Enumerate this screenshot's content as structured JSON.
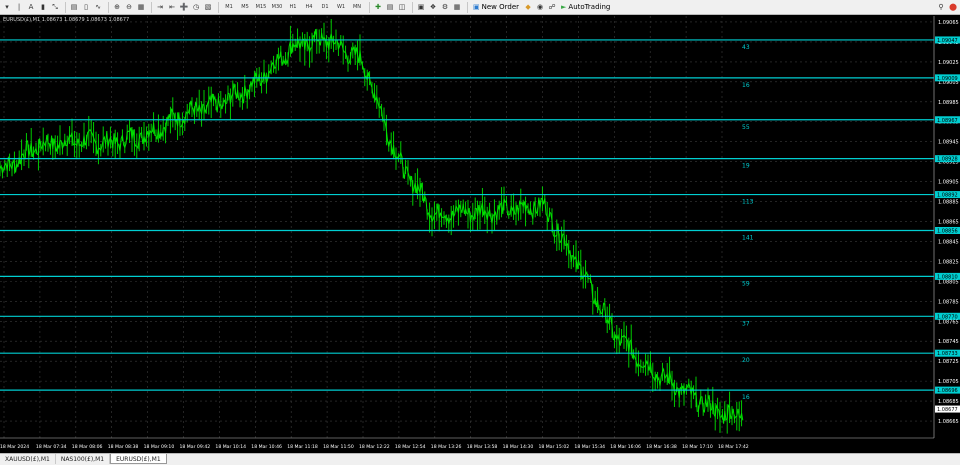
{
  "toolbar": {
    "timeframes": [
      "M1",
      "M5",
      "M15",
      "M30",
      "H1",
      "H4",
      "D1",
      "W1",
      "MN"
    ],
    "new_order_label": "New Order",
    "autotrading_label": "AutoTrading",
    "accent_autotrading": "#3aa845",
    "close_color": "#d93a2a"
  },
  "chart": {
    "symbol_label": "EURUSD(£),M1  1.08673 1.08679 1.08673 1.08677",
    "background": "#000000",
    "grid_color": "#3b3b3b",
    "candle_color": "#00e000",
    "level_color": "#00ced1",
    "price_axis_text_color": "#ffffff"
  },
  "chart_data": {
    "type": "line",
    "title": "",
    "xlabel": "",
    "ylabel": "",
    "x": [
      "18 Mar 2024",
      "18 Mar 07:34",
      "18 Mar 08:06",
      "18 Mar 08:38",
      "18 Mar 09:10",
      "18 Mar 09:42",
      "18 Mar 10:14",
      "18 Mar 10:46",
      "18 Mar 11:18",
      "18 Mar 11:50",
      "18 Mar 12:22",
      "18 Mar 12:54",
      "18 Mar 13:26",
      "18 Mar 13:58",
      "18 Mar 14:30",
      "18 Mar 15:02",
      "18 Mar 15:34",
      "18 Mar 16:06",
      "18 Mar 16:38",
      "18 Mar 17:10",
      "18 Mar 17:42"
    ],
    "x_at_ticks": [
      1.08918,
      1.08942,
      1.08946,
      1.08944,
      1.08953,
      1.08973,
      1.08982,
      1.09003,
      1.0904,
      1.09048,
      1.09025,
      1.08925,
      1.08872,
      1.08875,
      1.08876,
      1.08882,
      1.08822,
      1.08752,
      1.08718,
      1.08693,
      1.08672
    ],
    "ylim": [
      1.08648,
      1.09071
    ],
    "y_ticks": [
      "1.09065",
      "1.09045",
      "1.09025",
      "1.09005",
      "1.08985",
      "1.08965",
      "1.08945",
      "1.08925",
      "1.08905",
      "1.08885",
      "1.08865",
      "1.08845",
      "1.08825",
      "1.08805",
      "1.08785",
      "1.08765",
      "1.08745",
      "1.08725",
      "1.08705",
      "1.08685",
      "1.08665"
    ],
    "levels": [
      {
        "price": "1.09047",
        "label": "43"
      },
      {
        "price": "1.09009",
        "label": "16"
      },
      {
        "price": "1.08967",
        "label": "55"
      },
      {
        "price": "1.08928",
        "label": "19"
      },
      {
        "price": "1.08892",
        "label": "113"
      },
      {
        "price": "1.08856",
        "label": "141"
      },
      {
        "price": "1.08810",
        "label": "59"
      },
      {
        "price": "1.08770",
        "label": "37"
      },
      {
        "price": "1.08733",
        "label": "20"
      },
      {
        "price": "1.08696",
        "label": "16"
      }
    ],
    "current_price": "1.08677",
    "grid": true
  },
  "tabs": [
    {
      "label": "XAUUSD(£),M1",
      "active": false
    },
    {
      "label": "NAS100(£),M1",
      "active": false
    },
    {
      "label": "EURUSD(£),M1",
      "active": true
    }
  ]
}
